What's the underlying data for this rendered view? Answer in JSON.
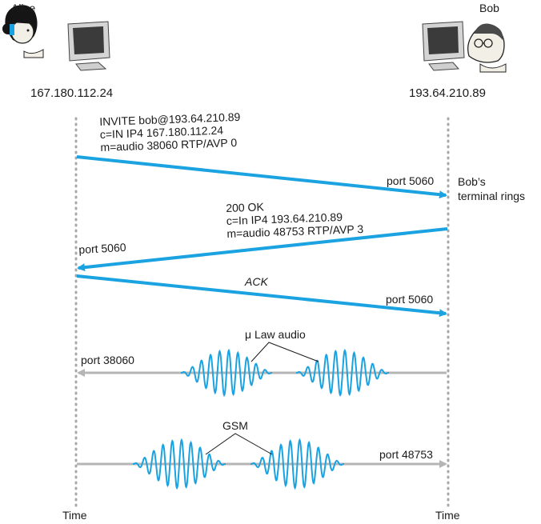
{
  "alice": {
    "name": "Alice",
    "ip": "167.180.112.24"
  },
  "bob": {
    "name": "Bob",
    "ip": "193.64.210.89"
  },
  "time_label": "Time",
  "invite": {
    "lines": [
      "INVITE bob@193.64.210.89",
      "c=IN IP4 167.180.112.24",
      "m=audio 38060 RTP/AVP 0"
    ],
    "port": "port 5060"
  },
  "bob_rings": [
    "Bob’s",
    "terminal rings"
  ],
  "ok": {
    "lines": [
      "200 OK",
      "c=In IP4 193.64.210.89",
      "m=audio 48753 RTP/AVP 3"
    ],
    "port": "port 5060"
  },
  "ack": {
    "label": "ACK",
    "port": "port 5060"
  },
  "audio_to_alice": {
    "label": "μ Law audio",
    "port": "port 38060"
  },
  "audio_to_bob": {
    "label": "GSM",
    "port": "port 48753"
  },
  "colors": {
    "message": "#1aa3e0",
    "media": "#b5b5b5",
    "timeline": "#a8a8a8",
    "text": "#1a1a1a"
  }
}
